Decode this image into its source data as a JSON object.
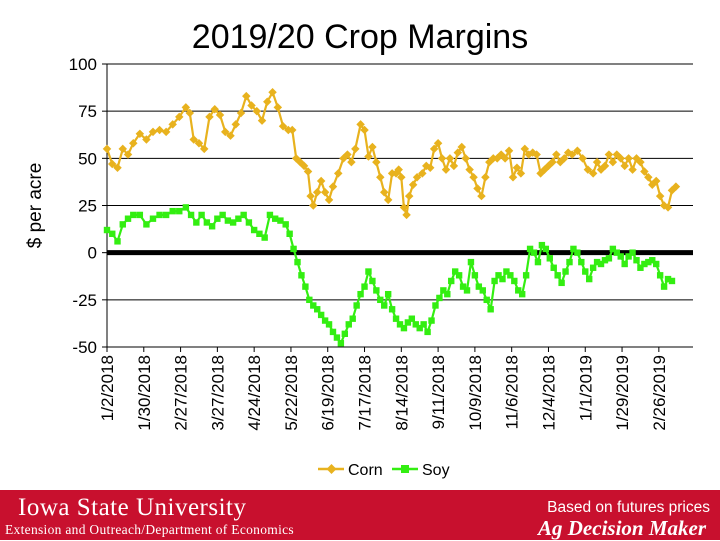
{
  "title": "2019/20 Crop Margins",
  "footer": {
    "university": "Iowa State University",
    "department": "Extension and Outreach/Department of Economics",
    "note": "Based on futures prices",
    "brand": "Ag Decision Maker"
  },
  "colors": {
    "corn": "#e8b21e",
    "soy": "#33ee11",
    "zero_line": "#000000",
    "footer_bg": "#c8102e"
  },
  "chart_data": {
    "type": "line",
    "title": "2019/20 Crop Margins",
    "xlabel": "",
    "ylabel": "$ per acre",
    "ylim": [
      -50,
      100
    ],
    "yticks": [
      100,
      75,
      50,
      25,
      0,
      -25,
      -50
    ],
    "xlim": [
      0,
      446
    ],
    "x_ticks": [
      {
        "label": "1/2/2018",
        "day": 0
      },
      {
        "label": "1/30/2018",
        "day": 28
      },
      {
        "label": "2/27/2018",
        "day": 56
      },
      {
        "label": "3/27/2018",
        "day": 84
      },
      {
        "label": "4/24/2018",
        "day": 112
      },
      {
        "label": "5/22/2018",
        "day": 140
      },
      {
        "label": "6/19/2018",
        "day": 168
      },
      {
        "label": "7/17/2018",
        "day": 196
      },
      {
        "label": "8/14/2018",
        "day": 224
      },
      {
        "label": "9/11/2018",
        "day": 252
      },
      {
        "label": "10/9/2018",
        "day": 280
      },
      {
        "label": "11/6/2018",
        "day": 308
      },
      {
        "label": "12/4/2018",
        "day": 336
      },
      {
        "label": "1/1/2019",
        "day": 364
      },
      {
        "label": "1/29/2019",
        "day": 392
      },
      {
        "label": "2/26/2019",
        "day": 420
      }
    ],
    "gridlines": true,
    "legend": "bottom-center",
    "x_note": "days since 1/2/2018",
    "series": [
      {
        "name": "Corn",
        "color": "#e8b21e",
        "points": [
          [
            0,
            55
          ],
          [
            4,
            47
          ],
          [
            8,
            45
          ],
          [
            12,
            55
          ],
          [
            16,
            52
          ],
          [
            20,
            58
          ],
          [
            25,
            63
          ],
          [
            30,
            60
          ],
          [
            35,
            64
          ],
          [
            40,
            65
          ],
          [
            45,
            64
          ],
          [
            50,
            68
          ],
          [
            55,
            72
          ],
          [
            60,
            77
          ],
          [
            63,
            74
          ],
          [
            66,
            60
          ],
          [
            70,
            58
          ],
          [
            74,
            55
          ],
          [
            78,
            72
          ],
          [
            82,
            76
          ],
          [
            86,
            73
          ],
          [
            90,
            64
          ],
          [
            94,
            62
          ],
          [
            98,
            68
          ],
          [
            102,
            74
          ],
          [
            106,
            83
          ],
          [
            110,
            78
          ],
          [
            114,
            75
          ],
          [
            118,
            70
          ],
          [
            122,
            80
          ],
          [
            126,
            85
          ],
          [
            130,
            77
          ],
          [
            134,
            67
          ],
          [
            138,
            65
          ],
          [
            141,
            65
          ],
          [
            144,
            50
          ],
          [
            147,
            48
          ],
          [
            150,
            46
          ],
          [
            153,
            43
          ],
          [
            155,
            30
          ],
          [
            157,
            25
          ],
          [
            160,
            32
          ],
          [
            163,
            38
          ],
          [
            166,
            32
          ],
          [
            169,
            28
          ],
          [
            172,
            35
          ],
          [
            176,
            42
          ],
          [
            180,
            50
          ],
          [
            183,
            52
          ],
          [
            186,
            48
          ],
          [
            189,
            55
          ],
          [
            193,
            68
          ],
          [
            196,
            65
          ],
          [
            199,
            51
          ],
          [
            202,
            56
          ],
          [
            205,
            48
          ],
          [
            208,
            40
          ],
          [
            211,
            32
          ],
          [
            214,
            28
          ],
          [
            217,
            42
          ],
          [
            220,
            42
          ],
          [
            222,
            44
          ],
          [
            224,
            40
          ],
          [
            226,
            24
          ],
          [
            228,
            20
          ],
          [
            230,
            30
          ],
          [
            233,
            36
          ],
          [
            236,
            40
          ],
          [
            240,
            42
          ],
          [
            243,
            46
          ],
          [
            246,
            45
          ],
          [
            249,
            55
          ],
          [
            252,
            58
          ],
          [
            255,
            50
          ],
          [
            258,
            44
          ],
          [
            261,
            50
          ],
          [
            264,
            46
          ],
          [
            267,
            53
          ],
          [
            270,
            56
          ],
          [
            273,
            50
          ],
          [
            276,
            44
          ],
          [
            279,
            40
          ],
          [
            282,
            34
          ],
          [
            285,
            30
          ],
          [
            288,
            40
          ],
          [
            291,
            48
          ],
          [
            294,
            50
          ],
          [
            297,
            50
          ],
          [
            300,
            52
          ],
          [
            303,
            50
          ],
          [
            306,
            54
          ],
          [
            309,
            40
          ],
          [
            312,
            45
          ],
          [
            315,
            42
          ],
          [
            318,
            55
          ],
          [
            321,
            52
          ],
          [
            324,
            53
          ],
          [
            327,
            52
          ],
          [
            330,
            42
          ],
          [
            333,
            44
          ],
          [
            336,
            46
          ],
          [
            339,
            48
          ],
          [
            342,
            52
          ],
          [
            345,
            48
          ],
          [
            348,
            50
          ],
          [
            351,
            53
          ],
          [
            354,
            52
          ],
          [
            358,
            54
          ],
          [
            362,
            50
          ],
          [
            366,
            44
          ],
          [
            370,
            42
          ],
          [
            373,
            48
          ],
          [
            376,
            44
          ],
          [
            379,
            46
          ],
          [
            382,
            52
          ],
          [
            385,
            48
          ],
          [
            388,
            52
          ],
          [
            391,
            50
          ],
          [
            394,
            46
          ],
          [
            397,
            50
          ],
          [
            400,
            44
          ],
          [
            403,
            50
          ],
          [
            406,
            48
          ],
          [
            409,
            43
          ],
          [
            412,
            40
          ],
          [
            415,
            36
          ],
          [
            418,
            38
          ],
          [
            421,
            30
          ],
          [
            424,
            25
          ],
          [
            427,
            24
          ],
          [
            430,
            33
          ],
          [
            433,
            35
          ]
        ]
      },
      {
        "name": "Soy",
        "color": "#33ee11",
        "points": [
          [
            0,
            12
          ],
          [
            4,
            10
          ],
          [
            8,
            6
          ],
          [
            12,
            15
          ],
          [
            16,
            18
          ],
          [
            20,
            20
          ],
          [
            25,
            20
          ],
          [
            30,
            15
          ],
          [
            35,
            18
          ],
          [
            40,
            20
          ],
          [
            45,
            20
          ],
          [
            50,
            22
          ],
          [
            55,
            22
          ],
          [
            60,
            24
          ],
          [
            64,
            20
          ],
          [
            68,
            16
          ],
          [
            72,
            20
          ],
          [
            76,
            16
          ],
          [
            80,
            14
          ],
          [
            84,
            18
          ],
          [
            88,
            20
          ],
          [
            92,
            17
          ],
          [
            96,
            16
          ],
          [
            100,
            18
          ],
          [
            104,
            20
          ],
          [
            108,
            16
          ],
          [
            112,
            12
          ],
          [
            116,
            10
          ],
          [
            120,
            8
          ],
          [
            124,
            20
          ],
          [
            128,
            18
          ],
          [
            132,
            17
          ],
          [
            136,
            15
          ],
          [
            139,
            10
          ],
          [
            142,
            2
          ],
          [
            145,
            -5
          ],
          [
            148,
            -12
          ],
          [
            151,
            -18
          ],
          [
            154,
            -25
          ],
          [
            157,
            -28
          ],
          [
            160,
            -30
          ],
          [
            163,
            -33
          ],
          [
            166,
            -36
          ],
          [
            169,
            -38
          ],
          [
            172,
            -42
          ],
          [
            175,
            -45
          ],
          [
            178,
            -48
          ],
          [
            181,
            -43
          ],
          [
            184,
            -38
          ],
          [
            187,
            -35
          ],
          [
            190,
            -28
          ],
          [
            193,
            -22
          ],
          [
            196,
            -18
          ],
          [
            199,
            -10
          ],
          [
            202,
            -15
          ],
          [
            205,
            -20
          ],
          [
            208,
            -25
          ],
          [
            211,
            -28
          ],
          [
            214,
            -22
          ],
          [
            217,
            -30
          ],
          [
            220,
            -35
          ],
          [
            223,
            -38
          ],
          [
            226,
            -40
          ],
          [
            229,
            -37
          ],
          [
            232,
            -35
          ],
          [
            235,
            -38
          ],
          [
            238,
            -40
          ],
          [
            241,
            -38
          ],
          [
            244,
            -42
          ],
          [
            247,
            -36
          ],
          [
            250,
            -28
          ],
          [
            253,
            -24
          ],
          [
            256,
            -20
          ],
          [
            259,
            -22
          ],
          [
            262,
            -15
          ],
          [
            265,
            -10
          ],
          [
            268,
            -12
          ],
          [
            271,
            -18
          ],
          [
            274,
            -20
          ],
          [
            277,
            -5
          ],
          [
            280,
            -12
          ],
          [
            283,
            -18
          ],
          [
            286,
            -20
          ],
          [
            289,
            -25
          ],
          [
            292,
            -30
          ],
          [
            295,
            -15
          ],
          [
            298,
            -12
          ],
          [
            301,
            -14
          ],
          [
            304,
            -10
          ],
          [
            307,
            -12
          ],
          [
            310,
            -15
          ],
          [
            313,
            -20
          ],
          [
            316,
            -22
          ],
          [
            319,
            -12
          ],
          [
            322,
            2
          ],
          [
            325,
            0
          ],
          [
            328,
            -5
          ],
          [
            331,
            4
          ],
          [
            334,
            2
          ],
          [
            337,
            -3
          ],
          [
            340,
            -8
          ],
          [
            343,
            -12
          ],
          [
            346,
            -16
          ],
          [
            349,
            -10
          ],
          [
            352,
            -5
          ],
          [
            355,
            2
          ],
          [
            358,
            0
          ],
          [
            361,
            -5
          ],
          [
            364,
            -10
          ],
          [
            367,
            -14
          ],
          [
            370,
            -8
          ],
          [
            373,
            -5
          ],
          [
            376,
            -6
          ],
          [
            379,
            -4
          ],
          [
            382,
            -3
          ],
          [
            385,
            2
          ],
          [
            388,
            0
          ],
          [
            391,
            -2
          ],
          [
            394,
            -6
          ],
          [
            397,
            -2
          ],
          [
            400,
            0
          ],
          [
            403,
            -4
          ],
          [
            406,
            -8
          ],
          [
            409,
            -6
          ],
          [
            412,
            -5
          ],
          [
            415,
            -4
          ],
          [
            418,
            -6
          ],
          [
            421,
            -12
          ],
          [
            424,
            -18
          ],
          [
            427,
            -14
          ],
          [
            430,
            -15
          ]
        ]
      }
    ]
  }
}
